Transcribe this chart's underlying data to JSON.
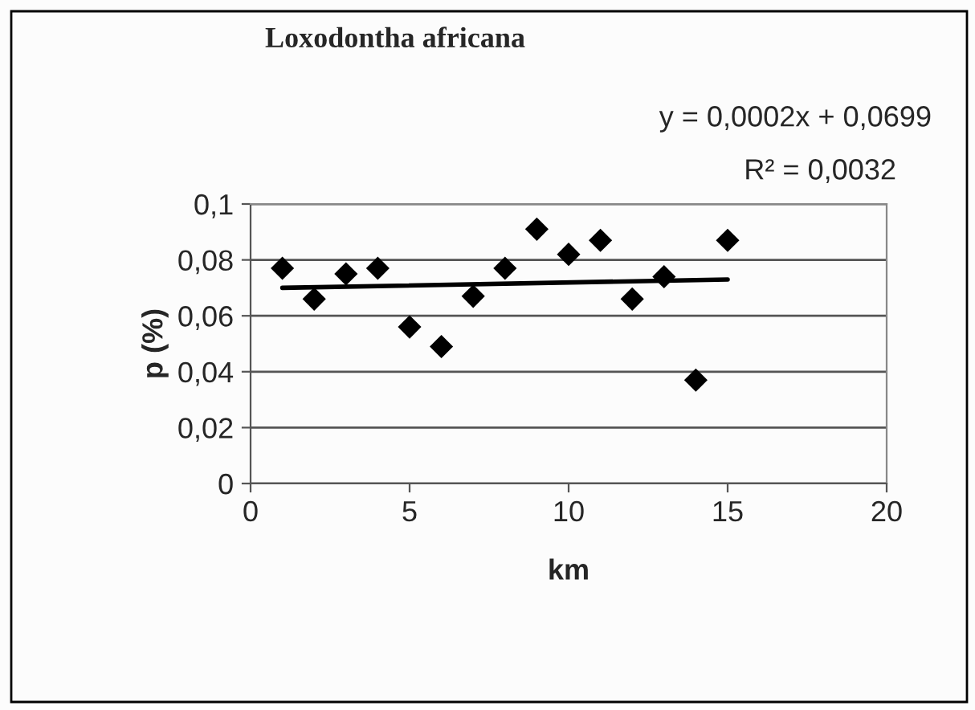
{
  "chart_data": {
    "type": "scatter",
    "title": "Loxodontha africana",
    "xlabel": "km",
    "ylabel": "p (%)",
    "annotations": [
      "y = 0,0002x + 0,0699",
      "R² = 0,0032"
    ],
    "x": [
      1,
      2,
      3,
      4,
      5,
      6,
      7,
      8,
      9,
      10,
      11,
      12,
      13,
      14,
      15
    ],
    "series": [
      {
        "color": "#000000",
        "marker": "diamond",
        "values": [
          0.077,
          0.066,
          0.075,
          0.077,
          0.056,
          0.049,
          0.067,
          0.077,
          0.091,
          0.082,
          0.087,
          0.066,
          0.074,
          0.037,
          0.087
        ]
      },
      {
        "type": "line",
        "color": "#000000",
        "x": [
          1,
          15
        ],
        "values": [
          0.07,
          0.073
        ]
      }
    ],
    "xlim": [
      0,
      20
    ],
    "xticks": [
      0,
      5,
      10,
      15,
      20
    ],
    "ylim": [
      0,
      0.1
    ],
    "yticks": [
      {
        "value": 0,
        "label": "0"
      },
      {
        "value": 0.02,
        "label": "0,02"
      },
      {
        "value": 0.04,
        "label": "0,04"
      },
      {
        "value": 0.06,
        "label": "0,06"
      },
      {
        "value": 0.08,
        "label": "0,08"
      },
      {
        "value": 0.1,
        "label": "0,1"
      }
    ],
    "grid": "y",
    "legend": false
  }
}
